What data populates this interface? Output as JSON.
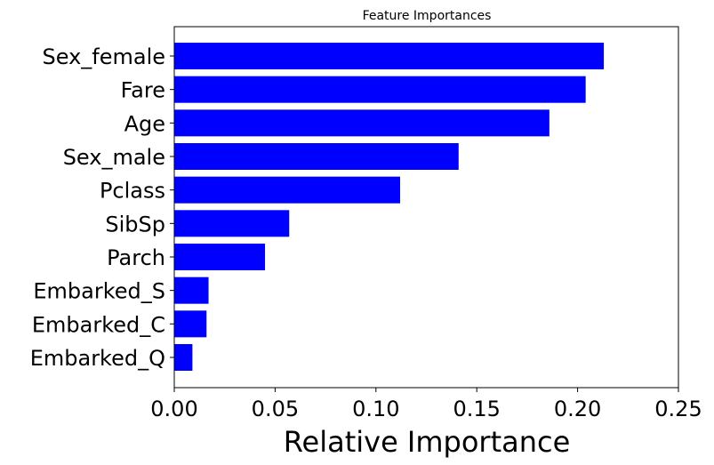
{
  "chart_data": {
    "type": "bar",
    "orientation": "horizontal",
    "title": "Feature Importances",
    "xlabel": "Relative Importance",
    "ylabel": "",
    "xlim": [
      0,
      0.25
    ],
    "xticks": [
      "0.00",
      "0.05",
      "0.10",
      "0.15",
      "0.20",
      "0.25"
    ],
    "grid": false,
    "bar_color": "#0000ff",
    "categories": [
      "Sex_female",
      "Fare",
      "Age",
      "Sex_male",
      "Pclass",
      "SibSp",
      "Parch",
      "Embarked_S",
      "Embarked_C",
      "Embarked_Q"
    ],
    "values": [
      0.213,
      0.204,
      0.186,
      0.141,
      0.112,
      0.057,
      0.045,
      0.017,
      0.016,
      0.009
    ]
  }
}
